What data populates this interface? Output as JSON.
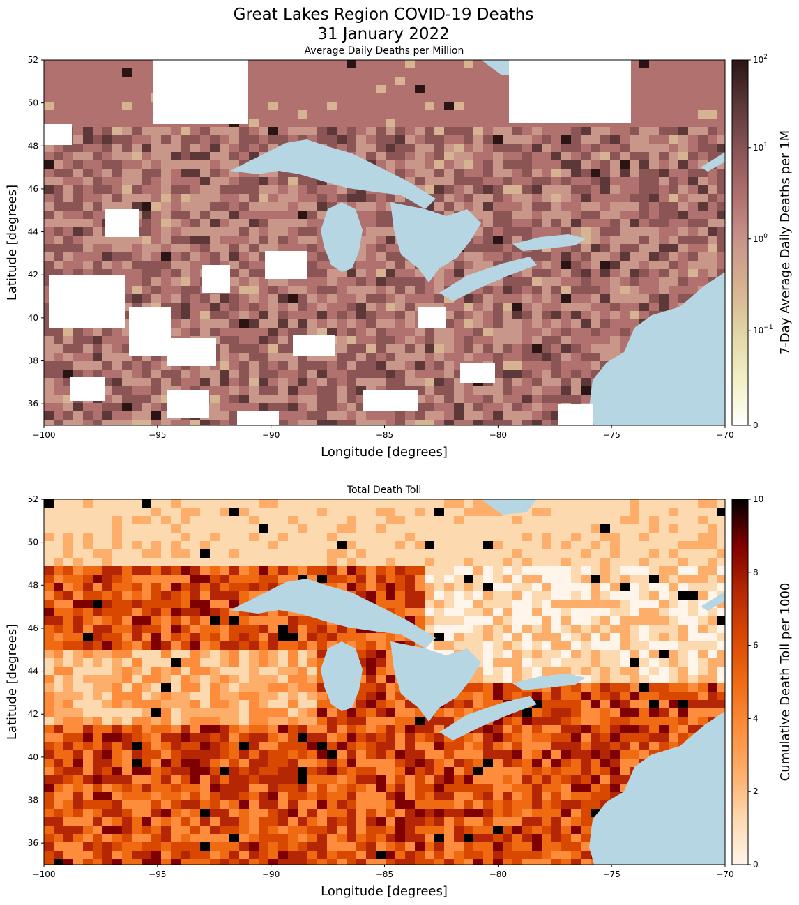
{
  "figure": {
    "title_line1": "Great Lakes Region COVID-19 Deaths",
    "title_line2": "31 January 2022"
  },
  "colors": {
    "water": "#b7d6e4",
    "land_nodata": "#ffffff",
    "frame": "#000000"
  },
  "maps": [
    {
      "id": "top",
      "title": "Average Daily Deaths per Million",
      "xlabel": "Longitude [degrees]",
      "ylabel": "Latitude [degrees]",
      "xlim": [
        -100,
        -70
      ],
      "ylim": [
        35,
        52
      ],
      "xticks": [
        -100,
        -95,
        -90,
        -85,
        -80,
        -75,
        -70
      ],
      "xticklabels": [
        "−100",
        "−95",
        "−90",
        "−85",
        "−80",
        "−75",
        "−70"
      ],
      "yticks": [
        36,
        38,
        40,
        42,
        44,
        46,
        48,
        50,
        52
      ],
      "yticklabels": [
        "36",
        "38",
        "40",
        "42",
        "44",
        "46",
        "48",
        "50",
        "52"
      ],
      "colorbar": {
        "label": "7-Day Average Daily Deaths per 1M",
        "scale": "symlog",
        "ticks": [
          {
            "base": "10",
            "exp": "2"
          },
          {
            "base": "10",
            "exp": "1"
          },
          {
            "base": "10",
            "exp": "0"
          },
          {
            "base": "10",
            "exp": "−1"
          },
          {
            "base": "0",
            "exp": ""
          }
        ],
        "colormap": [
          "#ffffff",
          "#f2f0c4",
          "#e2d6a6",
          "#d6b391",
          "#c9968a",
          "#b0716f",
          "#8b5555",
          "#5c3838",
          "#2a1414"
        ]
      }
    },
    {
      "id": "bottom",
      "title": "Total Death Toll",
      "xlabel": "Longitude [degrees]",
      "ylabel": "Latitude [degrees]",
      "xlim": [
        -100,
        -70
      ],
      "ylim": [
        35,
        52
      ],
      "xticks": [
        -100,
        -95,
        -90,
        -85,
        -80,
        -75,
        -70
      ],
      "xticklabels": [
        "−100",
        "−95",
        "−90",
        "−85",
        "−80",
        "−75",
        "−70"
      ],
      "yticks": [
        36,
        38,
        40,
        42,
        44,
        46,
        48,
        50,
        52
      ],
      "yticklabels": [
        "36",
        "38",
        "40",
        "42",
        "44",
        "46",
        "48",
        "50",
        "52"
      ],
      "colorbar": {
        "label": "Cumulative Death Toll per 1000",
        "scale": "linear",
        "range": [
          0,
          10
        ],
        "ticks": [
          "10",
          "8",
          "6",
          "4",
          "2",
          "0"
        ],
        "colormap": [
          "#fff5eb",
          "#fdd9b0",
          "#fdae6b",
          "#fd8d3c",
          "#f06a12",
          "#d94801",
          "#b52704",
          "#7f0000",
          "#000000"
        ]
      }
    }
  ]
}
